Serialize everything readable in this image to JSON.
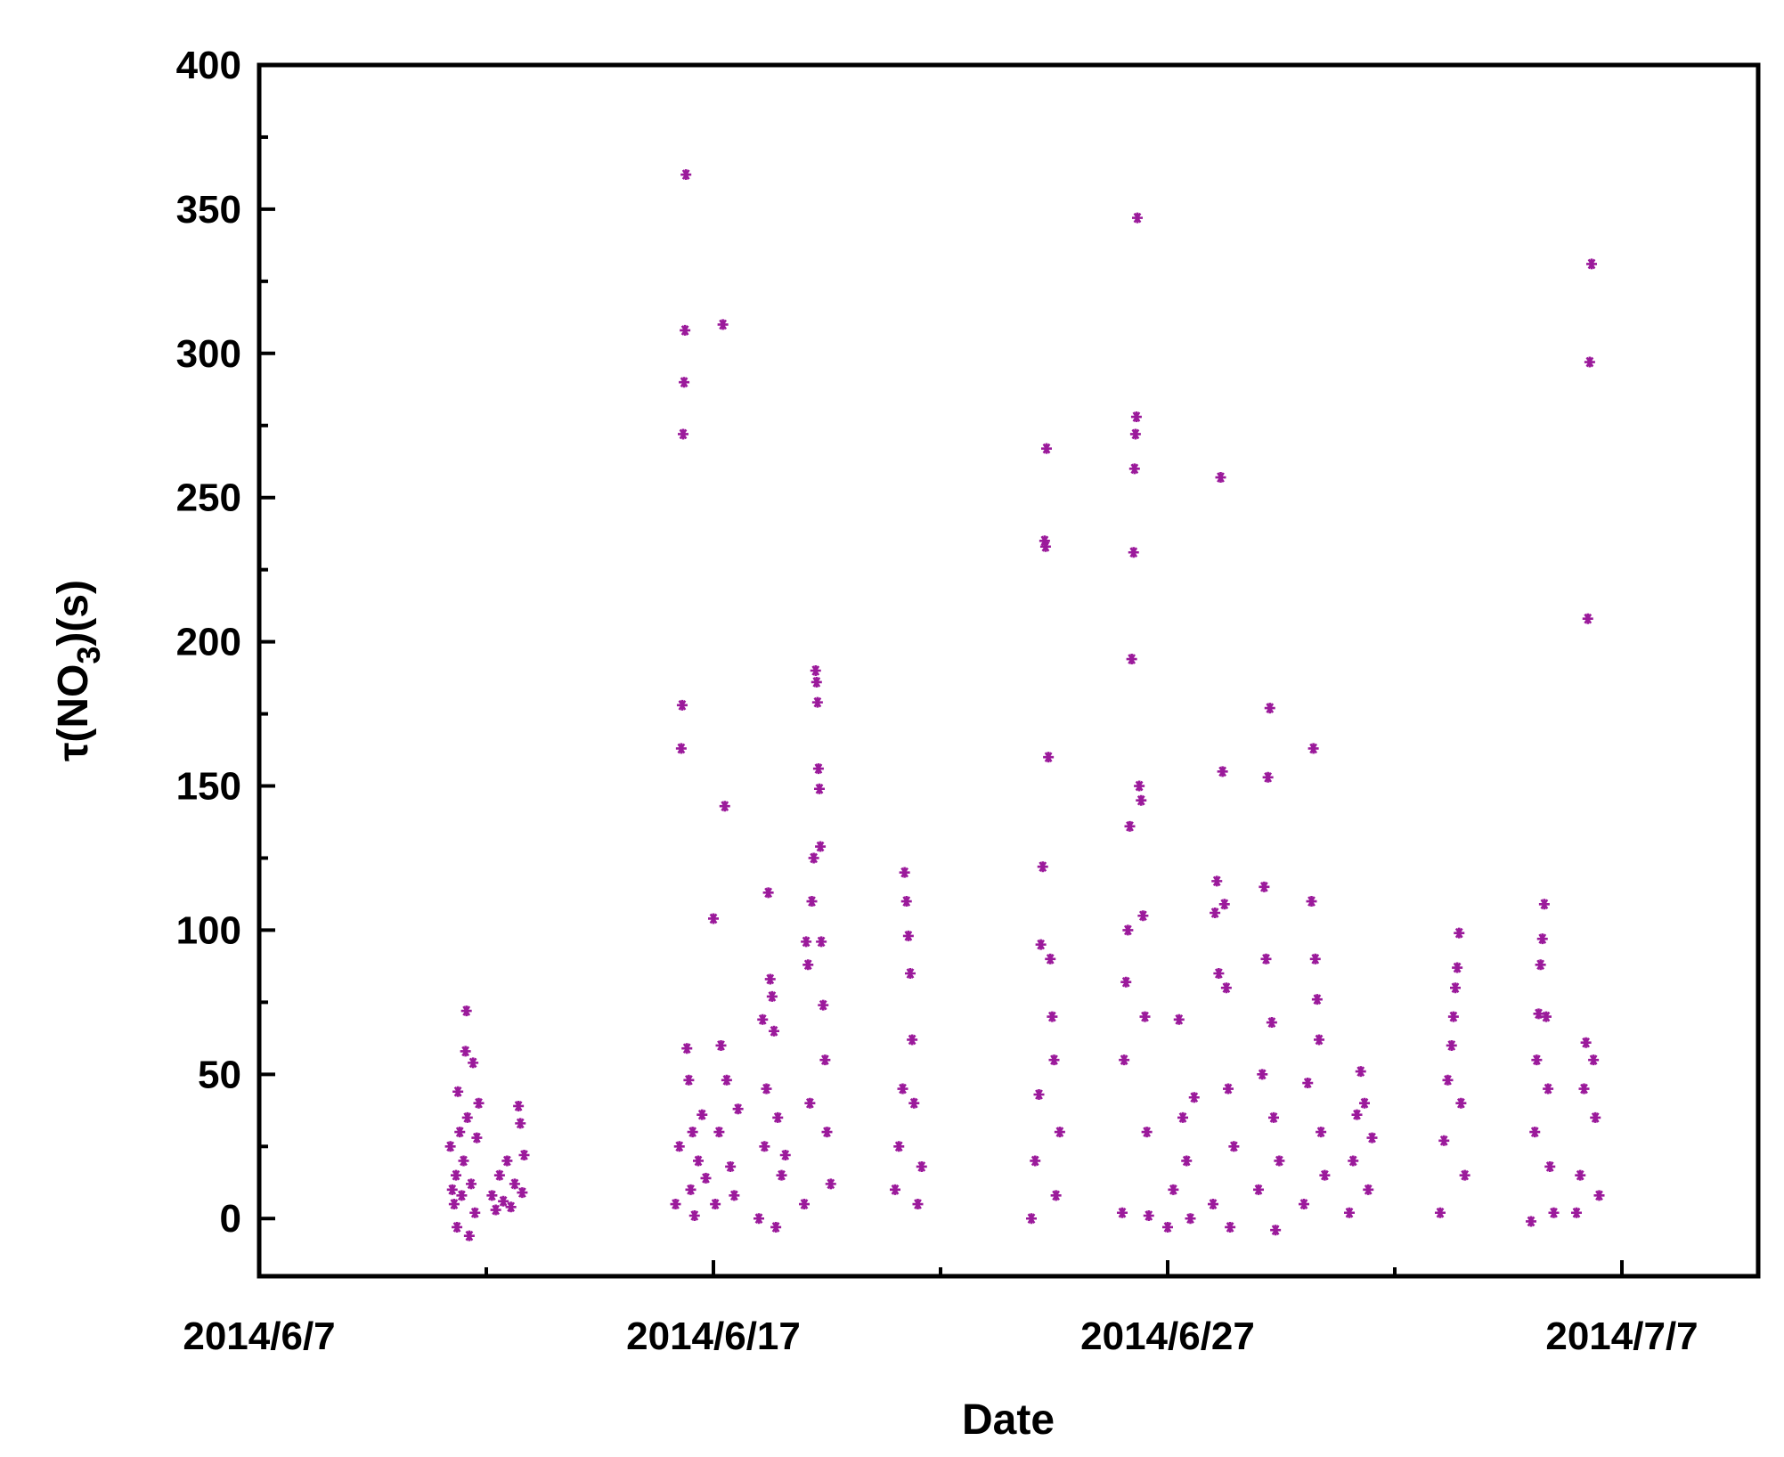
{
  "chart_data": {
    "type": "scatter",
    "title": "",
    "xlabel": "Date",
    "ylabel_main": "τ(NO",
    "ylabel_sub": "3",
    "ylabel_end": ")(s)",
    "x_unit": "date",
    "xlim": [
      "2014-06-07",
      "2014-07-10"
    ],
    "ylim": [
      -20,
      400
    ],
    "x_ticks": [
      {
        "date": "2014-06-07",
        "label": "2014/6/7"
      },
      {
        "date": "2014-06-17",
        "label": "2014/6/17"
      },
      {
        "date": "2014-06-27",
        "label": "2014/6/27"
      },
      {
        "date": "2014-07-07",
        "label": "2014/7/7"
      }
    ],
    "y_ticks": [
      {
        "value": 0,
        "label": "0"
      },
      {
        "value": 50,
        "label": "50"
      },
      {
        "value": 100,
        "label": "100"
      },
      {
        "value": 150,
        "label": "150"
      },
      {
        "value": 200,
        "label": "200"
      },
      {
        "value": 250,
        "label": "250"
      },
      {
        "value": 300,
        "label": "300"
      },
      {
        "value": 350,
        "label": "350"
      },
      {
        "value": 400,
        "label": "400"
      }
    ],
    "grid": false,
    "legend": "none",
    "marker": "asterisk",
    "marker_color": "#9b1a9b",
    "series": [
      {
        "points": [
          [
            "2014-06-11 05:00",
            25
          ],
          [
            "2014-06-11 06:00",
            10
          ],
          [
            "2014-06-11 07:00",
            5
          ],
          [
            "2014-06-11 08:00",
            15
          ],
          [
            "2014-06-11 08:30",
            -3
          ],
          [
            "2014-06-11 09:00",
            44
          ],
          [
            "2014-06-11 10:00",
            30
          ],
          [
            "2014-06-11 11:00",
            8
          ],
          [
            "2014-06-11 12:00",
            20
          ],
          [
            "2014-06-11 13:00",
            58
          ],
          [
            "2014-06-11 13:30",
            72
          ],
          [
            "2014-06-11 14:00",
            35
          ],
          [
            "2014-06-11 15:00",
            -6
          ],
          [
            "2014-06-11 16:00",
            12
          ],
          [
            "2014-06-11 17:00",
            54
          ],
          [
            "2014-06-11 18:00",
            2
          ],
          [
            "2014-06-11 19:00",
            28
          ],
          [
            "2014-06-11 20:00",
            40
          ],
          [
            "2014-06-12 03:00",
            8
          ],
          [
            "2014-06-12 05:00",
            3
          ],
          [
            "2014-06-12 07:00",
            15
          ],
          [
            "2014-06-12 09:00",
            6
          ],
          [
            "2014-06-12 11:00",
            20
          ],
          [
            "2014-06-12 13:00",
            4
          ],
          [
            "2014-06-12 15:00",
            12
          ],
          [
            "2014-06-12 17:00",
            39
          ],
          [
            "2014-06-12 18:00",
            33
          ],
          [
            "2014-06-12 19:00",
            9
          ],
          [
            "2014-06-12 20:00",
            22
          ],
          [
            "2014-06-16 04:00",
            5
          ],
          [
            "2014-06-16 06:00",
            25
          ],
          [
            "2014-06-16 07:00",
            163
          ],
          [
            "2014-06-16 07:30",
            178
          ],
          [
            "2014-06-16 08:00",
            272
          ],
          [
            "2014-06-16 08:30",
            290
          ],
          [
            "2014-06-16 09:00",
            308
          ],
          [
            "2014-06-16 09:30",
            362
          ],
          [
            "2014-06-16 10:00",
            59
          ],
          [
            "2014-06-16 11:00",
            48
          ],
          [
            "2014-06-16 12:00",
            10
          ],
          [
            "2014-06-16 13:00",
            30
          ],
          [
            "2014-06-16 14:00",
            1
          ],
          [
            "2014-06-16 16:00",
            20
          ],
          [
            "2014-06-16 18:00",
            36
          ],
          [
            "2014-06-16 20:00",
            14
          ],
          [
            "2014-06-17 00:00",
            104
          ],
          [
            "2014-06-17 01:00",
            5
          ],
          [
            "2014-06-17 03:00",
            30
          ],
          [
            "2014-06-17 04:00",
            60
          ],
          [
            "2014-06-17 05:00",
            310
          ],
          [
            "2014-06-17 06:00",
            143
          ],
          [
            "2014-06-17 07:00",
            48
          ],
          [
            "2014-06-17 09:00",
            18
          ],
          [
            "2014-06-17 11:00",
            8
          ],
          [
            "2014-06-17 13:00",
            38
          ],
          [
            "2014-06-18 00:00",
            0
          ],
          [
            "2014-06-18 02:00",
            69
          ],
          [
            "2014-06-18 03:00",
            25
          ],
          [
            "2014-06-18 04:00",
            45
          ],
          [
            "2014-06-18 05:00",
            113
          ],
          [
            "2014-06-18 06:00",
            83
          ],
          [
            "2014-06-18 07:00",
            77
          ],
          [
            "2014-06-18 08:00",
            65
          ],
          [
            "2014-06-18 09:00",
            -3
          ],
          [
            "2014-06-18 10:00",
            35
          ],
          [
            "2014-06-18 12:00",
            15
          ],
          [
            "2014-06-18 14:00",
            22
          ],
          [
            "2014-06-19 00:00",
            5
          ],
          [
            "2014-06-19 01:00",
            96
          ],
          [
            "2014-06-19 02:00",
            88
          ],
          [
            "2014-06-19 03:00",
            40
          ],
          [
            "2014-06-19 04:00",
            110
          ],
          [
            "2014-06-19 05:00",
            125
          ],
          [
            "2014-06-19 06:00",
            190
          ],
          [
            "2014-06-19 06:30",
            186
          ],
          [
            "2014-06-19 07:00",
            179
          ],
          [
            "2014-06-19 07:30",
            156
          ],
          [
            "2014-06-19 08:00",
            149
          ],
          [
            "2014-06-19 08:30",
            129
          ],
          [
            "2014-06-19 09:00",
            96
          ],
          [
            "2014-06-19 10:00",
            74
          ],
          [
            "2014-06-19 11:00",
            55
          ],
          [
            "2014-06-19 12:00",
            30
          ],
          [
            "2014-06-19 14:00",
            12
          ],
          [
            "2014-06-21 00:00",
            10
          ],
          [
            "2014-06-21 02:00",
            25
          ],
          [
            "2014-06-21 04:00",
            45
          ],
          [
            "2014-06-21 05:00",
            120
          ],
          [
            "2014-06-21 06:00",
            110
          ],
          [
            "2014-06-21 07:00",
            98
          ],
          [
            "2014-06-21 08:00",
            85
          ],
          [
            "2014-06-21 09:00",
            62
          ],
          [
            "2014-06-21 10:00",
            40
          ],
          [
            "2014-06-21 12:00",
            5
          ],
          [
            "2014-06-21 14:00",
            18
          ],
          [
            "2014-06-24 00:00",
            0
          ],
          [
            "2014-06-24 02:00",
            20
          ],
          [
            "2014-06-24 04:00",
            43
          ],
          [
            "2014-06-24 05:00",
            95
          ],
          [
            "2014-06-24 06:00",
            122
          ],
          [
            "2014-06-24 07:00",
            235
          ],
          [
            "2014-06-24 07:30",
            233
          ],
          [
            "2014-06-24 08:00",
            267
          ],
          [
            "2014-06-24 09:00",
            160
          ],
          [
            "2014-06-24 10:00",
            90
          ],
          [
            "2014-06-24 11:00",
            70
          ],
          [
            "2014-06-24 12:00",
            55
          ],
          [
            "2014-06-24 13:00",
            8
          ],
          [
            "2014-06-24 15:00",
            30
          ],
          [
            "2014-06-26 00:00",
            2
          ],
          [
            "2014-06-26 01:00",
            55
          ],
          [
            "2014-06-26 02:00",
            82
          ],
          [
            "2014-06-26 03:00",
            100
          ],
          [
            "2014-06-26 04:00",
            136
          ],
          [
            "2014-06-26 05:00",
            194
          ],
          [
            "2014-06-26 06:00",
            231
          ],
          [
            "2014-06-26 06:30",
            260
          ],
          [
            "2014-06-26 07:00",
            272
          ],
          [
            "2014-06-26 07:30",
            278
          ],
          [
            "2014-06-26 08:00",
            347
          ],
          [
            "2014-06-26 09:00",
            150
          ],
          [
            "2014-06-26 10:00",
            145
          ],
          [
            "2014-06-26 11:00",
            105
          ],
          [
            "2014-06-26 12:00",
            70
          ],
          [
            "2014-06-26 13:00",
            30
          ],
          [
            "2014-06-26 14:00",
            1
          ],
          [
            "2014-06-27 00:00",
            -3
          ],
          [
            "2014-06-27 03:00",
            10
          ],
          [
            "2014-06-27 06:00",
            69
          ],
          [
            "2014-06-27 08:00",
            35
          ],
          [
            "2014-06-27 10:00",
            20
          ],
          [
            "2014-06-27 12:00",
            0
          ],
          [
            "2014-06-27 14:00",
            42
          ],
          [
            "2014-06-28 00:00",
            5
          ],
          [
            "2014-06-28 01:00",
            106
          ],
          [
            "2014-06-28 02:00",
            117
          ],
          [
            "2014-06-28 03:00",
            85
          ],
          [
            "2014-06-28 04:00",
            257
          ],
          [
            "2014-06-28 05:00",
            155
          ],
          [
            "2014-06-28 06:00",
            109
          ],
          [
            "2014-06-28 07:00",
            80
          ],
          [
            "2014-06-28 08:00",
            45
          ],
          [
            "2014-06-28 09:00",
            -3
          ],
          [
            "2014-06-28 11:00",
            25
          ],
          [
            "2014-06-29 00:00",
            10
          ],
          [
            "2014-06-29 02:00",
            50
          ],
          [
            "2014-06-29 03:00",
            115
          ],
          [
            "2014-06-29 04:00",
            90
          ],
          [
            "2014-06-29 05:00",
            153
          ],
          [
            "2014-06-29 06:00",
            177
          ],
          [
            "2014-06-29 07:00",
            68
          ],
          [
            "2014-06-29 08:00",
            35
          ],
          [
            "2014-06-29 09:00",
            -4
          ],
          [
            "2014-06-29 11:00",
            20
          ],
          [
            "2014-06-30 00:00",
            5
          ],
          [
            "2014-06-30 02:00",
            47
          ],
          [
            "2014-06-30 04:00",
            110
          ],
          [
            "2014-06-30 05:00",
            163
          ],
          [
            "2014-06-30 06:00",
            90
          ],
          [
            "2014-06-30 07:00",
            76
          ],
          [
            "2014-06-30 08:00",
            62
          ],
          [
            "2014-06-30 09:00",
            30
          ],
          [
            "2014-06-30 11:00",
            15
          ],
          [
            "2014-07-01 00:00",
            2
          ],
          [
            "2014-07-01 02:00",
            20
          ],
          [
            "2014-07-01 04:00",
            36
          ],
          [
            "2014-07-01 06:00",
            51
          ],
          [
            "2014-07-01 08:00",
            40
          ],
          [
            "2014-07-01 10:00",
            10
          ],
          [
            "2014-07-01 12:00",
            28
          ],
          [
            "2014-07-03 00:00",
            2
          ],
          [
            "2014-07-03 02:00",
            27
          ],
          [
            "2014-07-03 04:00",
            48
          ],
          [
            "2014-07-03 06:00",
            60
          ],
          [
            "2014-07-03 07:00",
            70
          ],
          [
            "2014-07-03 08:00",
            80
          ],
          [
            "2014-07-03 09:00",
            87
          ],
          [
            "2014-07-03 10:00",
            99
          ],
          [
            "2014-07-03 11:00",
            40
          ],
          [
            "2014-07-03 13:00",
            15
          ],
          [
            "2014-07-05 00:00",
            -1
          ],
          [
            "2014-07-05 02:00",
            30
          ],
          [
            "2014-07-05 03:00",
            55
          ],
          [
            "2014-07-05 04:00",
            71
          ],
          [
            "2014-07-05 05:00",
            88
          ],
          [
            "2014-07-05 06:00",
            97
          ],
          [
            "2014-07-05 07:00",
            109
          ],
          [
            "2014-07-05 08:00",
            70
          ],
          [
            "2014-07-05 09:00",
            45
          ],
          [
            "2014-07-05 10:00",
            18
          ],
          [
            "2014-07-05 12:00",
            2
          ],
          [
            "2014-07-06 00:00",
            2
          ],
          [
            "2014-07-06 02:00",
            15
          ],
          [
            "2014-07-06 04:00",
            45
          ],
          [
            "2014-07-06 05:00",
            61
          ],
          [
            "2014-07-06 06:00",
            208
          ],
          [
            "2014-07-06 07:00",
            297
          ],
          [
            "2014-07-06 08:00",
            331
          ],
          [
            "2014-07-06 09:00",
            55
          ],
          [
            "2014-07-06 10:00",
            35
          ],
          [
            "2014-07-06 12:00",
            8
          ]
        ]
      }
    ]
  }
}
